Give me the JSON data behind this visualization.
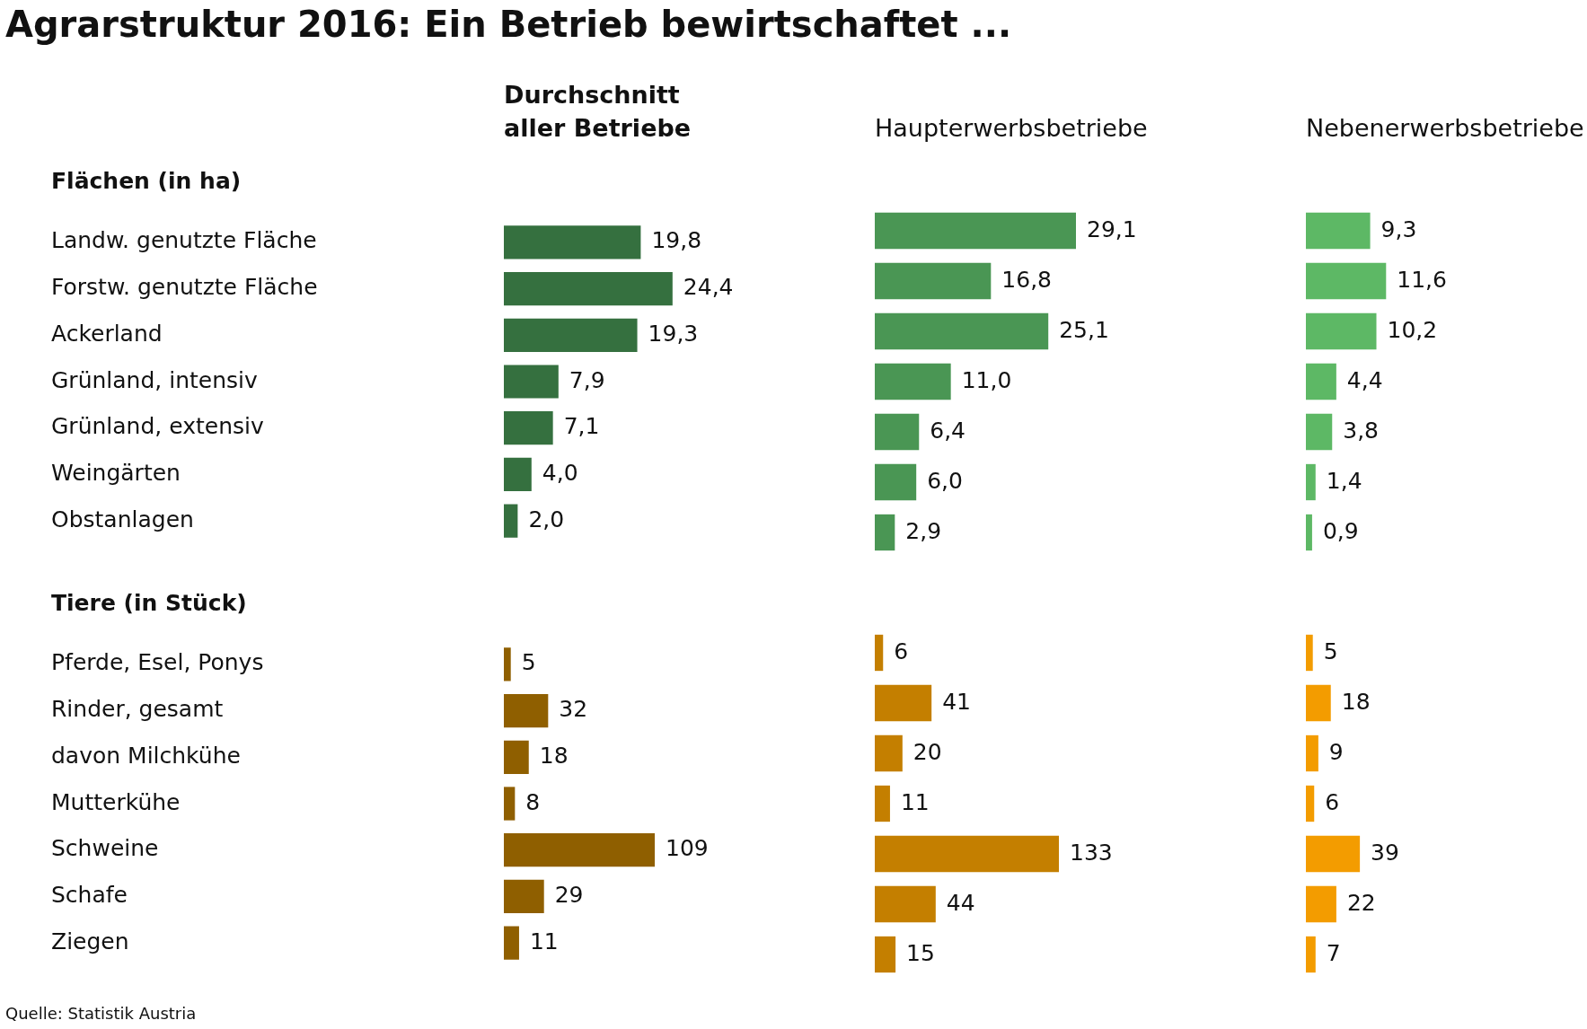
{
  "chart_data": [
    {
      "type": "other",
      "title": "Agrarstruktur 2016: Ein Betrieb bewirtschaftet ...",
      "annotations": [
        "Quelle: Statistik Austria"
      ]
    },
    {
      "type": "bar",
      "orientation": "horizontal",
      "title": "Durchschnitt aller Betriebe",
      "ylabel": "Flächen (in ha)",
      "categories": [
        "Landw. genutzte Fläche",
        "Forstw. genutzte Fläche",
        "Ackerland",
        "Grünland, intensiv",
        "Grünland, extensiv",
        "Weingärten",
        "Obstanlagen"
      ],
      "values": [
        19.8,
        24.4,
        19.3,
        7.9,
        7.1,
        4.0,
        2.0
      ],
      "value_labels": [
        "19,8",
        "24,4",
        "19,3",
        "7,9",
        "7,1",
        "4,0",
        "2,0"
      ],
      "color": "#35703f",
      "tick_labels": "y"
    },
    {
      "type": "bar",
      "orientation": "horizontal",
      "title": "Haupterwerbsbetriebe",
      "categories": [
        null,
        null,
        null,
        null,
        null,
        null,
        null
      ],
      "values": [
        29.1,
        16.8,
        25.1,
        11.0,
        6.4,
        6.0,
        2.9
      ],
      "value_labels": [
        "29,1",
        "16,8",
        "25,1",
        "11,0",
        "6,4",
        "6,0",
        "2,9"
      ],
      "color": "#4a9654",
      "tick_labels": false
    },
    {
      "type": "bar",
      "orientation": "horizontal",
      "title": "Nebenerwerbsbetriebe",
      "categories": [
        null,
        null,
        null,
        null,
        null,
        null,
        null
      ],
      "values": [
        9.3,
        11.6,
        10.2,
        4.4,
        3.8,
        1.4,
        0.9
      ],
      "value_labels": [
        "9,3",
        "11,6",
        "10,2",
        "4,4",
        "3,8",
        "1,4",
        "0,9"
      ],
      "color": "#5db865",
      "tick_labels": false
    },
    {
      "type": "bar",
      "orientation": "horizontal",
      "ylabel": "Tiere (in Stück)",
      "categories": [
        "Pferde, Esel, Ponys",
        "Rinder, gesamt",
        "davon Milchkühe",
        "Mutterkühe",
        "Schweine",
        "Schafe",
        "Ziegen"
      ],
      "values": [
        5,
        32,
        18,
        8,
        109,
        29,
        11
      ],
      "data_labels": true,
      "color": "#8f5f00",
      "tick_labels": "y"
    },
    {
      "type": "bar",
      "orientation": "horizontal",
      "categories": [
        null,
        null,
        null,
        null,
        null,
        null,
        null
      ],
      "values": [
        6,
        41,
        20,
        11,
        133,
        44,
        15
      ],
      "data_labels": true,
      "color": "#c47f00",
      "tick_labels": false
    },
    {
      "type": "bar",
      "orientation": "horizontal",
      "categories": [
        null,
        null,
        null,
        null,
        null,
        null,
        null
      ],
      "values": [
        5,
        18,
        9,
        6,
        39,
        22,
        7
      ],
      "data_labels": true,
      "color": "#f39c00",
      "tick_labels": false
    }
  ]
}
